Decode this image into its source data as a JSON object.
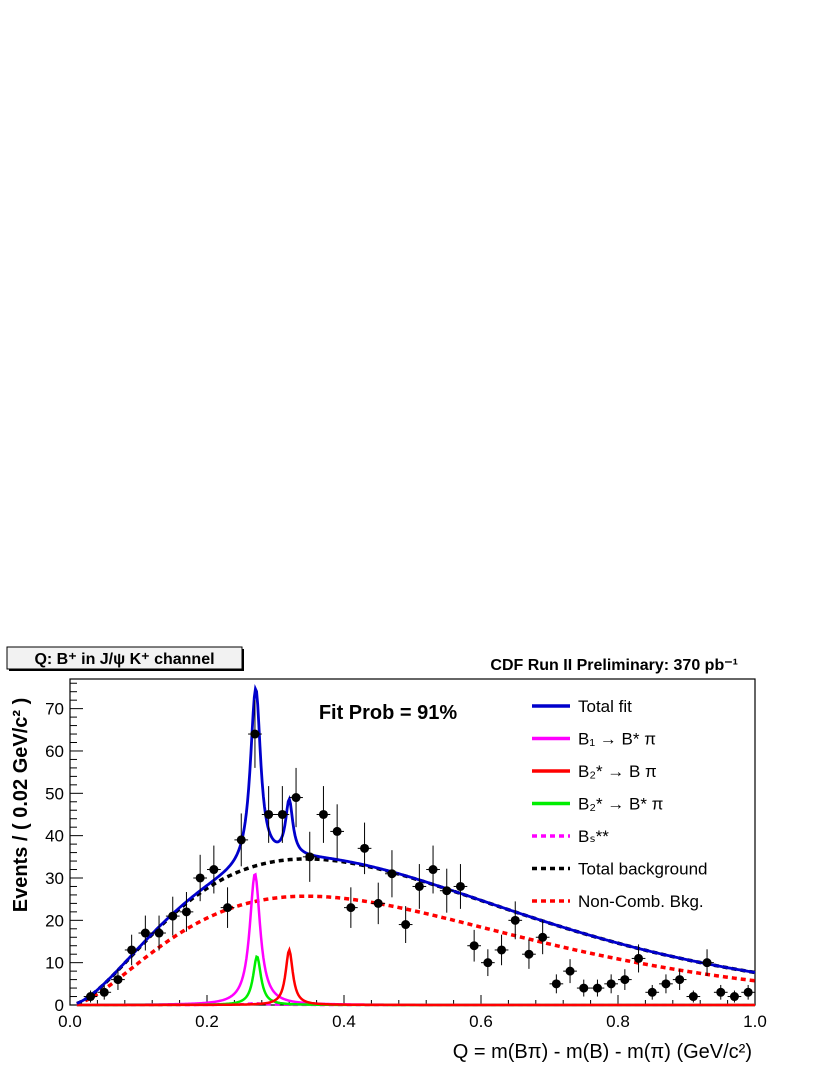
{
  "chart_data": {
    "type": "scatter",
    "title_box": "Q: B⁺ in J/ψ K⁺ channel",
    "experiment_label": "CDF Run II Preliminary: 370 pb⁻¹",
    "fit_prob_label": "Fit Prob = 91%",
    "xlabel": "Q = m(Bπ) - m(B) - m(π)    (GeV/c²)",
    "ylabel": "Events / ( 0.02 GeV/c² )",
    "xlim": [
      0.0,
      1.0
    ],
    "ylim": [
      0,
      77
    ],
    "x_ticks": [
      0.0,
      0.2,
      0.4,
      0.6,
      0.8,
      1.0
    ],
    "x_tick_labels": [
      "0.0",
      "0.2",
      "0.4",
      "0.6",
      "0.8",
      "1.0"
    ],
    "y_ticks": [
      0,
      10,
      20,
      30,
      40,
      50,
      60,
      70
    ],
    "y_tick_labels": [
      "0",
      "10",
      "20",
      "30",
      "40",
      "50",
      "60",
      "70"
    ],
    "grid": false,
    "legend_position": "top-right",
    "data_points": {
      "x": [
        0.03,
        0.05,
        0.07,
        0.09,
        0.11,
        0.13,
        0.15,
        0.17,
        0.19,
        0.21,
        0.23,
        0.25,
        0.27,
        0.29,
        0.31,
        0.33,
        0.35,
        0.37,
        0.39,
        0.41,
        0.43,
        0.45,
        0.47,
        0.49,
        0.51,
        0.53,
        0.55,
        0.57,
        0.59,
        0.61,
        0.63,
        0.65,
        0.67,
        0.69,
        0.71,
        0.73,
        0.75,
        0.77,
        0.79,
        0.81,
        0.83,
        0.85,
        0.87,
        0.89,
        0.91,
        0.93,
        0.95,
        0.97,
        0.99
      ],
      "y": [
        2,
        3,
        6,
        13,
        17,
        17,
        21,
        22,
        30,
        32,
        23,
        39,
        64,
        45,
        45,
        49,
        35,
        45,
        41,
        23,
        37,
        24,
        31,
        19,
        28,
        32,
        27,
        28,
        14,
        10,
        13,
        20,
        12,
        16,
        5,
        8,
        4,
        4,
        5,
        6,
        11,
        3,
        5,
        6,
        2,
        10,
        3,
        2,
        3
      ]
    },
    "series": [
      {
        "name": "Total fit",
        "color": "#0000cc",
        "style": "solid"
      },
      {
        "name": "B₁ → B* π",
        "color": "#ff00ff",
        "style": "solid"
      },
      {
        "name": "B₂* → B π",
        "color": "#ff0000",
        "style": "solid"
      },
      {
        "name": "B₂* → B* π",
        "color": "#00ee00",
        "style": "solid"
      },
      {
        "name": "Bₛ**",
        "color": "#ff00ff",
        "style": "dashed"
      },
      {
        "name": "Total background",
        "color": "#000000",
        "style": "dashed"
      },
      {
        "name": "Non-Comb. Bkg.",
        "color": "#ff0000",
        "style": "dashed"
      }
    ],
    "curves": {
      "background_total": {
        "amplitude": 34.5,
        "peak_x": 0.345,
        "shape_power": 1.8
      },
      "background_noncomb_fraction": 0.745,
      "peaks": [
        {
          "series": "B₁ → B* π",
          "mean": 0.27,
          "width": 0.016,
          "height": 31
        },
        {
          "series": "B₂* → B* π",
          "mean": 0.273,
          "width": 0.012,
          "height": 11.5
        },
        {
          "series": "B₂* → B π",
          "mean": 0.32,
          "width": 0.011,
          "height": 13
        },
        {
          "series": "Bₛ**",
          "mean": 0.27,
          "width": 0.03,
          "height": 0.4
        }
      ]
    }
  }
}
